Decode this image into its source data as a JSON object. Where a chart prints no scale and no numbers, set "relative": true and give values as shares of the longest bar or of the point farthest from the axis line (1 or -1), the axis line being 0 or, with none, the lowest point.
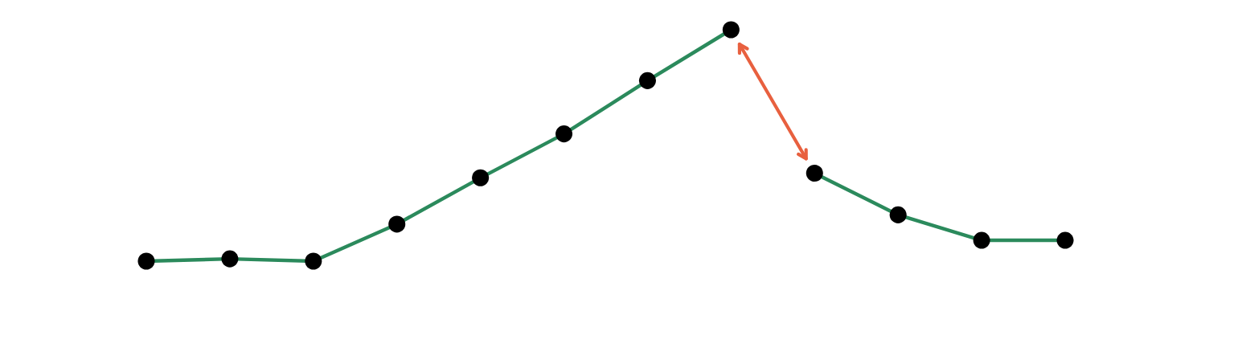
{
  "chart_data": {
    "type": "line",
    "relative": true,
    "categories": [
      null,
      null,
      null,
      null,
      null,
      null,
      null,
      null,
      null,
      null,
      null,
      null
    ],
    "series": [
      {
        "color": "#2b8a5c",
        "colors": [
          "#000000",
          "#000000",
          "#000000",
          "#000000",
          "#000000",
          "#000000",
          "#000000",
          "#000000",
          null,
          null,
          null,
          null
        ],
        "values": [
          0,
          0.01,
          0,
          0.16,
          0.36,
          0.55,
          0.78,
          1,
          null,
          null,
          null,
          null
        ]
      },
      {
        "color": "#2b8a5c",
        "colors": [
          null,
          null,
          null,
          null,
          null,
          null,
          null,
          null,
          "#000000",
          "#000000",
          "#000000",
          "#000000"
        ],
        "values": [
          null,
          null,
          null,
          null,
          null,
          null,
          null,
          null,
          0.38,
          0.2,
          0.09,
          0.09
        ]
      }
    ],
    "marker": "circle",
    "line_style": "solid",
    "tick_labels": false
  }
}
